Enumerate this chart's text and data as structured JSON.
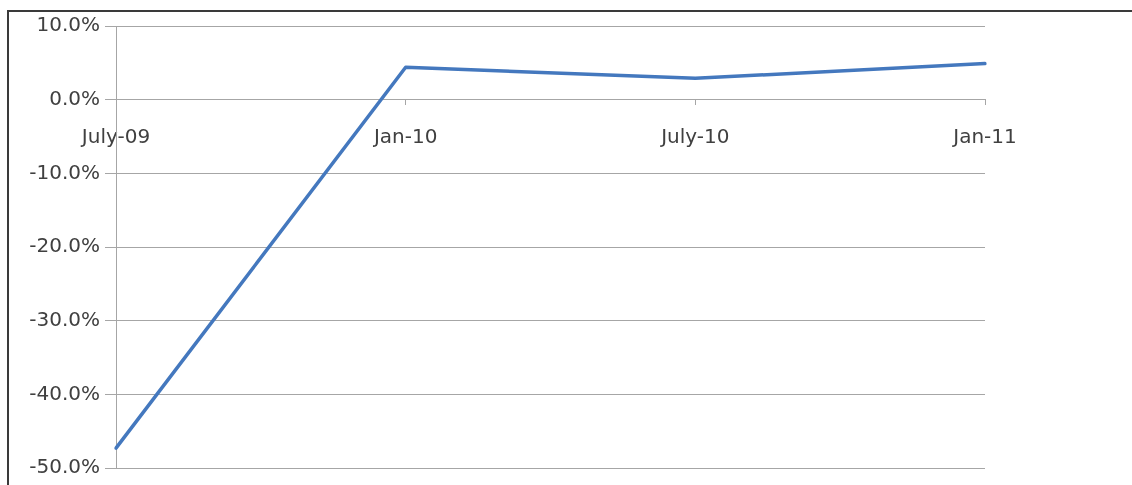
{
  "chart_data": {
    "type": "line",
    "categories": [
      "July-09",
      "Jan-10",
      "July-10",
      "Jan-11"
    ],
    "series": [
      {
        "color": "#4478be",
        "values": [
          -47.3,
          4.4,
          2.9,
          4.9
        ]
      }
    ],
    "ylim": [
      -50,
      10
    ],
    "yticks": [
      {
        "value": -50,
        "label": "-50.0%"
      },
      {
        "value": -40,
        "label": "-40.0%"
      },
      {
        "value": -30,
        "label": "-30.0%"
      },
      {
        "value": -20,
        "label": "-20.0%"
      },
      {
        "value": -10,
        "label": "-10.0%"
      },
      {
        "value": 0,
        "label": "0.0%"
      },
      {
        "value": 10,
        "label": "10.0%"
      }
    ],
    "grid": "y"
  }
}
